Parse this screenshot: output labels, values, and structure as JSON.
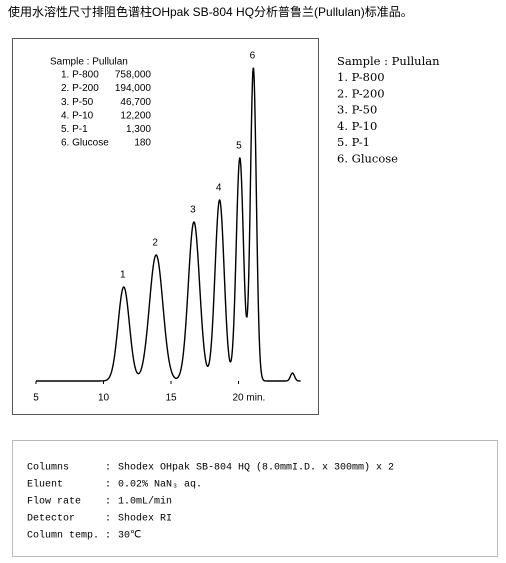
{
  "title": "使用水溶性尺寸排阻色谱柱OHpak SB-804 HQ分析普鲁兰(Pullulan)标准品。",
  "chart_data": {
    "type": "chromatogram",
    "categories": [
      "1",
      "2",
      "3",
      "4",
      "5",
      "6",
      null
    ],
    "x": [
      11.5,
      13.9,
      16.7,
      18.6,
      20.1,
      21.1,
      24.0
    ],
    "values": [
      94,
      126,
      159,
      181,
      223,
      313,
      8
    ],
    "widths": [
      0.42,
      0.5,
      0.42,
      0.34,
      0.27,
      0.22,
      0.15
    ],
    "xlim": [
      5,
      24.6
    ],
    "ylim": [
      0,
      330
    ],
    "xticks": [
      5,
      10,
      15,
      {
        "value": 20,
        "label": "20 min."
      }
    ],
    "color": "#000000",
    "inset": {
      "title": "Sample : Pullulan",
      "rows": [
        [
          "1. P-800",
          "758,000"
        ],
        [
          "2. P-200",
          "194,000"
        ],
        [
          "3. P-50",
          "46,700"
        ],
        [
          "4. P-10",
          "12,200"
        ],
        [
          "5. P-1",
          "1,300"
        ],
        [
          "6. Glucose",
          "180"
        ]
      ]
    }
  },
  "side_legend": {
    "title": "Sample : Pullulan",
    "items": [
      "1. P-800",
      "2. P-200",
      "3. P-50",
      "4. P-10",
      "5. P-1",
      "6. Glucose"
    ]
  },
  "conditions": {
    "separator": ":",
    "rows": [
      {
        "label": "Columns",
        "value": "Shodex OHpak SB-804 HQ (8.0mmI.D. x 300mm) x 2"
      },
      {
        "label": "Eluent",
        "value": "0.02% NaN₃ aq."
      },
      {
        "label": "Flow rate",
        "value": "1.0mL/min"
      },
      {
        "label": "Detector",
        "value": "Shodex RI"
      },
      {
        "label": "Column temp.",
        "value": "30℃"
      }
    ]
  }
}
